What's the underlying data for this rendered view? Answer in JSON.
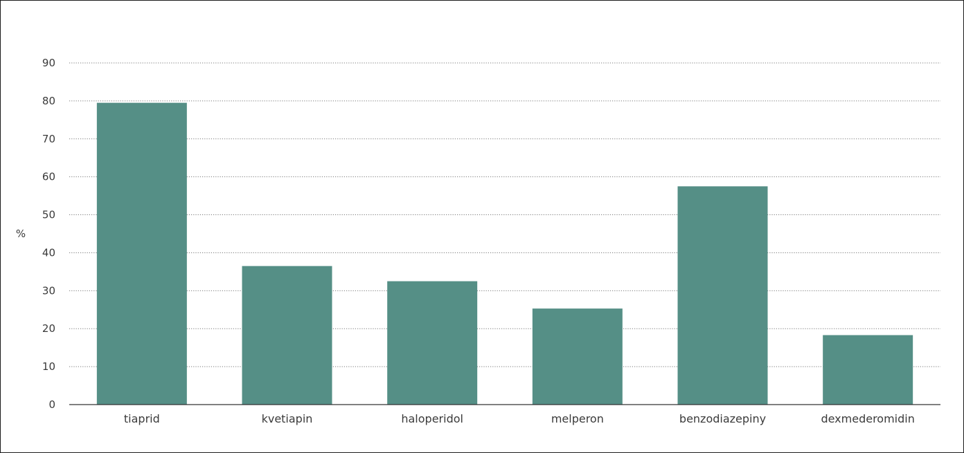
{
  "chart_data": {
    "type": "bar",
    "categories": [
      "tiaprid",
      "kvetiapin",
      "haloperidol",
      "melperon",
      "benzodiazepiny",
      "dexmederomidin"
    ],
    "values": [
      79.5,
      36.5,
      32.5,
      25.3,
      57.5,
      18.3
    ],
    "ylabel": "%",
    "xlabel": "",
    "ylim": [
      0,
      90
    ],
    "yticks": [
      0,
      10,
      20,
      30,
      40,
      50,
      60,
      70,
      80,
      90
    ],
    "grid": true,
    "bar_color": "#558f86"
  }
}
